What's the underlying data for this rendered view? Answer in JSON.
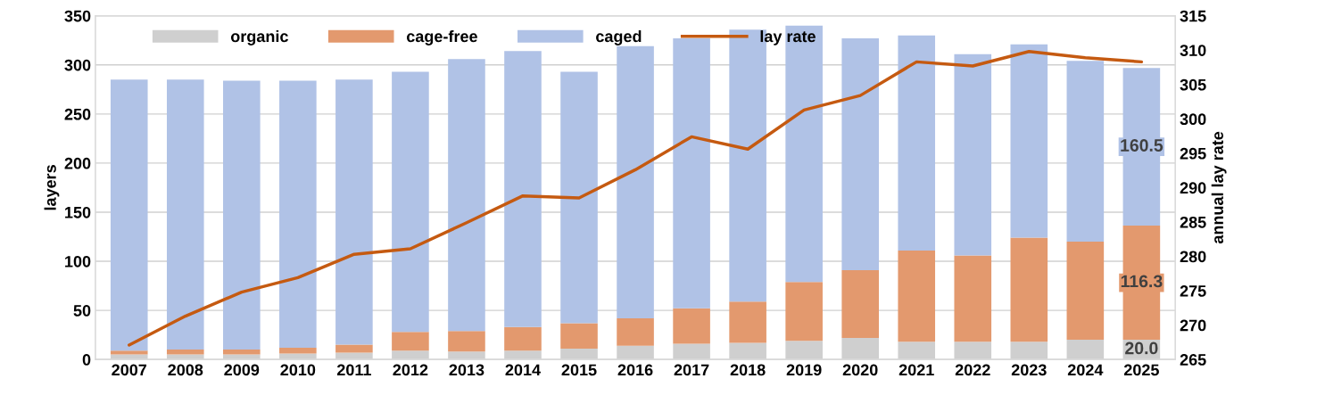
{
  "chart_data": {
    "type": "bar",
    "stacked": true,
    "ylabel": "layers",
    "y2label": "annual lay rate",
    "categories": [
      "2007",
      "2008",
      "2009",
      "2010",
      "2011",
      "2012",
      "2013",
      "2014",
      "2015",
      "2016",
      "2017",
      "2018",
      "2019",
      "2020",
      "2021",
      "2022",
      "2023",
      "2024",
      "2025"
    ],
    "series": [
      {
        "name": "organic",
        "color": "#cfcfcf",
        "values": [
          5,
          5,
          5,
          6,
          7,
          9,
          8,
          9,
          11,
          14,
          16,
          17,
          19,
          22,
          18,
          18,
          18,
          20,
          20.0
        ],
        "value_labels": [
          null,
          null,
          null,
          null,
          null,
          null,
          null,
          null,
          null,
          null,
          null,
          null,
          null,
          null,
          null,
          null,
          null,
          null,
          "20.0"
        ]
      },
      {
        "name": "cage-free",
        "color": "#e3996e",
        "values": [
          4,
          5,
          5,
          6,
          8,
          19,
          21,
          24,
          26,
          28,
          36,
          42,
          60,
          69,
          93,
          88,
          106,
          100,
          116.3
        ],
        "value_labels": [
          null,
          null,
          null,
          null,
          null,
          null,
          null,
          null,
          null,
          null,
          null,
          null,
          null,
          null,
          null,
          null,
          null,
          null,
          "116.3"
        ]
      },
      {
        "name": "caged",
        "color": "#b0c2e6",
        "values": [
          276,
          275,
          274,
          272,
          270,
          265,
          277,
          281,
          256,
          277,
          275,
          277,
          261,
          236,
          219,
          205,
          197,
          184,
          160.5
        ],
        "value_labels": [
          null,
          null,
          null,
          null,
          null,
          null,
          null,
          null,
          null,
          null,
          null,
          null,
          null,
          null,
          null,
          null,
          null,
          null,
          "160.5"
        ]
      },
      {
        "name": "lay rate",
        "type": "line",
        "axis": "y2",
        "color": "#c55a11",
        "values": [
          267.1,
          271.3,
          274.8,
          276.9,
          280.3,
          281.1,
          284.9,
          288.8,
          288.5,
          292.6,
          297.4,
          295.6,
          301.3,
          303.4,
          308.3,
          307.7,
          309.8,
          308.9,
          308.3
        ]
      }
    ],
    "ylim": [
      0,
      350
    ],
    "yticks": [
      0,
      50,
      100,
      150,
      200,
      250,
      300,
      350
    ],
    "y2lim": [
      265,
      315
    ],
    "y2ticks": [
      265,
      270,
      275,
      280,
      285,
      290,
      295,
      300,
      305,
      310,
      315
    ],
    "grid": "y",
    "legend": "top left",
    "marker": "none",
    "line_style": "solid"
  }
}
